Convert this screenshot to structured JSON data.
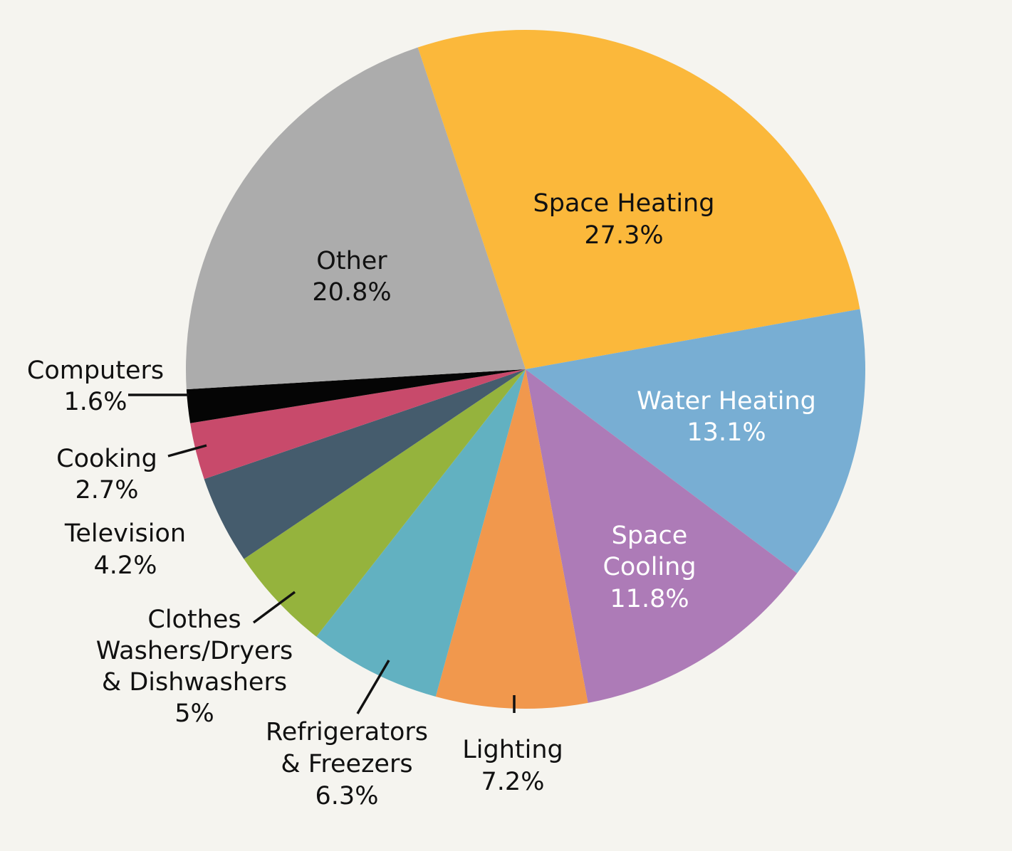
{
  "chart_data": {
    "type": "pie",
    "title": "",
    "unit": "%",
    "slices": [
      {
        "name": "Space Heating",
        "value": 27.3,
        "display": "27.3%",
        "color": "#fbb83b",
        "text_color": "#111111"
      },
      {
        "name": "Water Heating",
        "value": 13.1,
        "display": "13.1%",
        "color": "#78aed3",
        "text_color": "#ffffff"
      },
      {
        "name": "Space Cooling",
        "value": 11.8,
        "display": "11.8%",
        "color": "#ad7bb7",
        "text_color": "#ffffff"
      },
      {
        "name": "Lighting",
        "value": 7.2,
        "display": "7.2%",
        "color": "#f1984d",
        "text_color": "#111111"
      },
      {
        "name": "Refrigerators & Freezers",
        "value": 6.3,
        "display": "6.3%",
        "color": "#62b1c1",
        "text_color": "#111111"
      },
      {
        "name": "Clothes Washers/Dryers & Dishwashers",
        "value": 5,
        "display": "5%",
        "color": "#95b33d",
        "text_color": "#111111"
      },
      {
        "name": "Television",
        "value": 4.2,
        "display": "4.2%",
        "color": "#455c6d",
        "text_color": "#111111"
      },
      {
        "name": "Cooking",
        "value": 2.7,
        "display": "2.7%",
        "color": "#c84a6b",
        "text_color": "#111111"
      },
      {
        "name": "Computers",
        "value": 1.6,
        "display": "1.6%",
        "color": "#050505",
        "text_color": "#111111"
      },
      {
        "name": "Other",
        "value": 20.8,
        "display": "20.8%",
        "color": "#acacac",
        "text_color": "#111111"
      }
    ]
  }
}
